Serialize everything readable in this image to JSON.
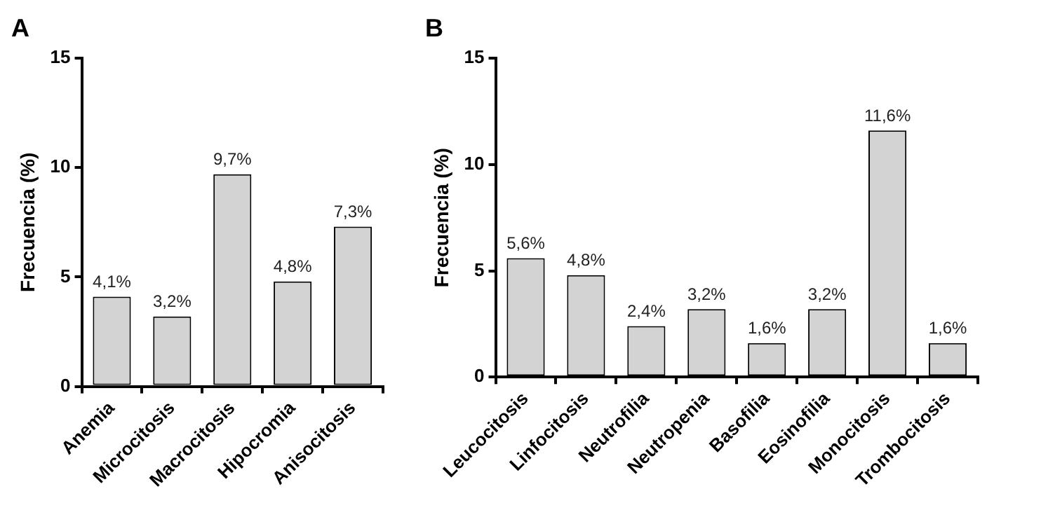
{
  "chart_data": [
    {
      "type": "bar",
      "title": "A",
      "ylabel": "Frecuencia (%)",
      "categories": [
        "Anemia",
        "Microcitosis",
        "Macrocitosis",
        "Hipocromia",
        "Anisocitosis"
      ],
      "values": [
        4.1,
        3.2,
        9.7,
        4.8,
        7.3
      ],
      "value_labels": [
        "4,1%",
        "3,2%",
        "9,7%",
        "4,8%",
        "7,3%"
      ],
      "color": "#d3d3d3",
      "ylim": [
        0,
        15
      ],
      "yticks": [
        0,
        5,
        10,
        15
      ],
      "grid": false,
      "legend": false
    },
    {
      "type": "bar",
      "title": "B",
      "ylabel": "Frecuencia (%)",
      "categories": [
        "Leucocitosis",
        "Linfocitosis",
        "Neutrofilia",
        "Neutropenia",
        "Basofilia",
        "Eosinofilia",
        "Monocitosis",
        "Trombocitosis"
      ],
      "values": [
        5.6,
        4.8,
        2.4,
        3.2,
        1.6,
        3.2,
        11.6,
        1.6
      ],
      "value_labels": [
        "5,6%",
        "4,8%",
        "2,4%",
        "3,2%",
        "1,6%",
        "3,2%",
        "11,6%",
        "1,6%"
      ],
      "color": "#d3d3d3",
      "ylim": [
        0,
        15
      ],
      "yticks": [
        0,
        5,
        10,
        15
      ],
      "grid": false,
      "legend": false
    }
  ]
}
